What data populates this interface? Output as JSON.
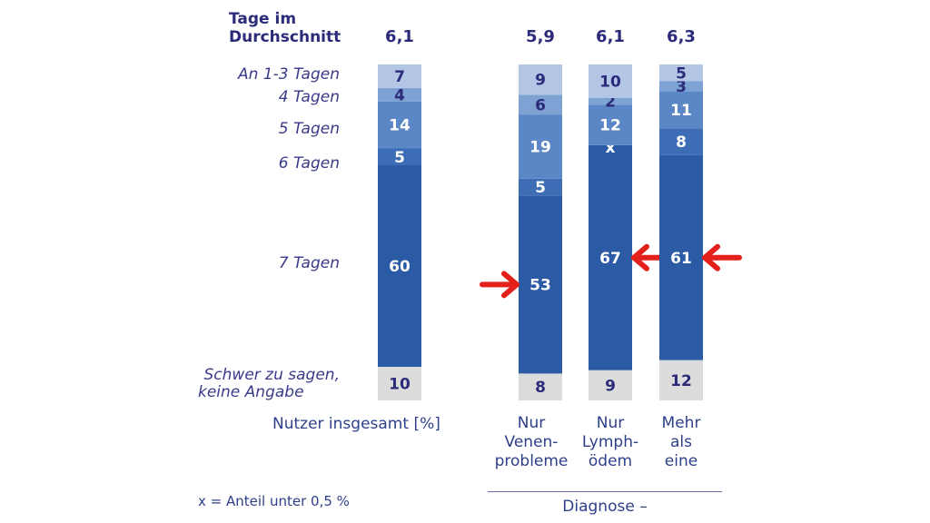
{
  "chart_data": {
    "type": "bar",
    "stacked": true,
    "title": "Tage im Durchschnitt",
    "header_label": [
      "Tage im",
      "Durchschnitt"
    ],
    "unit_label": "Nutzer insgesamt [%]",
    "group_label": "Diagnose –",
    "footnote": "x = Anteil unter 0,5 %",
    "segments": [
      "Schwer zu sagen, keine Angabe",
      "7 Tagen",
      "6 Tagen",
      "5 Tagen",
      "4 Tagen",
      "An 1-3 Tagen"
    ],
    "row_labels": [
      {
        "text": "An 1-3 Tagen"
      },
      {
        "text": "4 Tagen"
      },
      {
        "text": "5 Tagen"
      },
      {
        "text": "6 Tagen"
      },
      {
        "text": "7 Tagen"
      },
      {
        "text": "Schwer zu sagen,"
      },
      {
        "text": "keine Angabe"
      }
    ],
    "colors": [
      "#dcdcdc",
      "#2c5ba6",
      "#3d6eb5",
      "#5b87c6",
      "#7ea2d4",
      "#b3c6e5"
    ],
    "label_colors": [
      "#2b2b7a",
      "#ffffff",
      "#ffffff",
      "#ffffff",
      "#2b2b7a",
      "#2b2b7a"
    ],
    "series": [
      {
        "name": "Nutzer insgesamt",
        "average": "6,1",
        "values": [
          10,
          60,
          5,
          14,
          4,
          7
        ],
        "labels": [
          "10",
          "60",
          "5",
          "14",
          "4",
          "7"
        ],
        "category_lines": [],
        "arrow": null
      },
      {
        "name": "Nur Venenprobleme",
        "average": "5,9",
        "values": [
          8,
          53,
          5,
          19,
          6,
          9
        ],
        "labels": [
          "8",
          "53",
          "5",
          "19",
          "6",
          "9"
        ],
        "category_lines": [
          "Nur",
          "Venen-",
          "probleme"
        ],
        "arrow": "left"
      },
      {
        "name": "Nur Lymphödem",
        "average": "6,1",
        "values": [
          9,
          67,
          0,
          12,
          2,
          10
        ],
        "labels": [
          "9",
          "67",
          "x",
          "12",
          "2",
          "10"
        ],
        "category_lines": [
          "Nur",
          "Lymph-",
          "ödem"
        ],
        "arrow": "right"
      },
      {
        "name": "Mehr als eine",
        "average": "6,3",
        "values": [
          12,
          61,
          8,
          11,
          3,
          5
        ],
        "labels": [
          "12",
          "61",
          "8",
          "11",
          "3",
          "5"
        ],
        "category_lines": [
          "Mehr",
          "als",
          "eine"
        ],
        "arrow": "right"
      }
    ],
    "annotation_color": "#e3201b"
  }
}
